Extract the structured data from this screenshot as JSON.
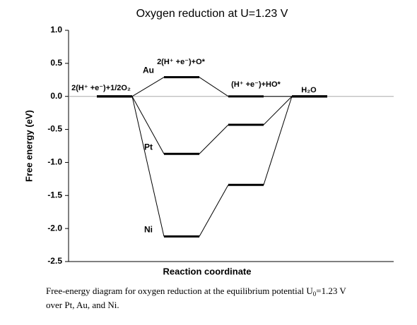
{
  "chart_data": {
    "type": "energy-level",
    "title": "Oxygen reduction at U=1.23 V",
    "ylabel": "Free energy (eV)",
    "xlabel": "Reaction coordinate",
    "categories": [
      "2(H⁺ +e⁻)+1/2O₂",
      "2(H⁺ +e⁻)+O*",
      "(H⁺ +e⁻)+HO*",
      "H₂O"
    ],
    "series": [
      {
        "name": "Au",
        "color": "#000000",
        "values": [
          0,
          0.29,
          0,
          0
        ]
      },
      {
        "name": "Pt",
        "color": "#000000",
        "values": [
          0,
          -0.87,
          -0.43,
          0
        ]
      },
      {
        "name": "Ni",
        "color": "#000000",
        "values": [
          0,
          -2.12,
          -1.34,
          0
        ]
      }
    ],
    "ylim": [
      -2.5,
      1.0
    ],
    "yticks": [
      {
        "value": -2.5,
        "label": "-2.5"
      },
      {
        "value": -2.0,
        "label": "-2.0"
      },
      {
        "value": -1.5,
        "label": "-1.5"
      },
      {
        "value": -1.0,
        "label": "-1.0"
      },
      {
        "value": -0.5,
        "label": "-0.5"
      },
      {
        "value": 0,
        "label": "0.0"
      },
      {
        "value": 0.5,
        "label": "0.5"
      },
      {
        "value": 1.0,
        "label": "1.0"
      }
    ],
    "zero_line": true,
    "caption": [
      "Free-energy diagram for oxygen reduction at the equilibrium potential U",
      "0",
      "=1.23 V",
      "over Pt, Au, and Ni."
    ]
  }
}
